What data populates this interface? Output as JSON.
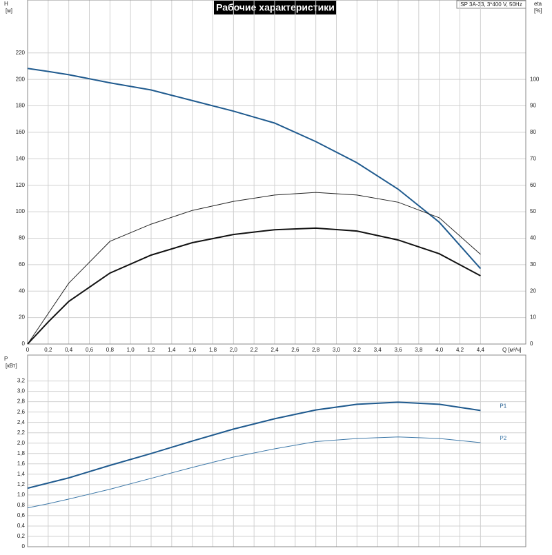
{
  "chart_data": [
    {
      "type": "line",
      "title": "Рабочие характеристики",
      "subtitle": "SP 3A-33, 3*400 V, 50Hz",
      "x_label": "Q [м³/ч]",
      "y_label": [
        "H",
        "[м]"
      ],
      "y2_label": [
        "eta",
        "[%]"
      ],
      "x": [
        0,
        0.2,
        0.4,
        0.8,
        1.2,
        1.6,
        2.0,
        2.4,
        2.8,
        3.2,
        3.6,
        4.0,
        4.4
      ],
      "xlim": [
        0,
        4.84
      ],
      "xticks": [
        0,
        {
          "value": 0.2,
          "label": "0,2"
        },
        {
          "value": 0.4,
          "label": "0,4"
        },
        {
          "value": 0.6,
          "label": "0,6"
        },
        {
          "value": 0.8,
          "label": "0,8"
        },
        {
          "value": 1.0,
          "label": "1,0"
        },
        {
          "value": 1.2,
          "label": "1,2"
        },
        {
          "value": 1.4,
          "label": "1,4"
        },
        {
          "value": 1.6,
          "label": "1,6"
        },
        {
          "value": 1.8,
          "label": "1,8"
        },
        {
          "value": 2.0,
          "label": "2,0"
        },
        {
          "value": 2.2,
          "label": "2,2"
        },
        {
          "value": 2.4,
          "label": "2,4"
        },
        {
          "value": 2.6,
          "label": "2,6"
        },
        {
          "value": 2.8,
          "label": "2,8"
        },
        {
          "value": 3.0,
          "label": "3,0"
        },
        {
          "value": 3.2,
          "label": "3,2"
        },
        {
          "value": 3.4,
          "label": "3,4"
        },
        {
          "value": 3.6,
          "label": "3,6"
        },
        {
          "value": 3.8,
          "label": "3,8"
        },
        {
          "value": 4.0,
          "label": "4,0"
        },
        {
          "value": 4.2,
          "label": "4,2"
        },
        {
          "value": 4.4,
          "label": "4,4"
        }
      ],
      "ylim": [
        0,
        260
      ],
      "yticks": [
        0,
        20,
        40,
        60,
        80,
        100,
        120,
        140,
        160,
        180,
        200,
        220
      ],
      "y2lim": [
        0,
        130
      ],
      "y2ticks": [
        0,
        10,
        20,
        30,
        40,
        50,
        60,
        70,
        80,
        90,
        100
      ],
      "grid": true,
      "series": [
        {
          "color": "#1f5a8e",
          "width": 2,
          "values": [
            208.3,
            206,
            203.5,
            197.4,
            192,
            184,
            176,
            167,
            153,
            137,
            117,
            92,
            57
          ]
        },
        {
          "color": "#222222",
          "width": 1,
          "axis": "y2",
          "values": [
            0,
            11.5,
            23,
            38.8,
            45.3,
            50.5,
            53.9,
            56.3,
            57.3,
            56.3,
            53.6,
            47.7,
            33.9
          ]
        },
        {
          "color": "#111111",
          "width": 2,
          "axis": "y2",
          "values": [
            0,
            8.3,
            16.1,
            26.8,
            33.6,
            38.3,
            41.4,
            43.2,
            43.8,
            42.7,
            39.3,
            34.1,
            25.8
          ]
        }
      ]
    },
    {
      "type": "line",
      "y_label": [
        "P",
        "[кВт]"
      ],
      "x": [
        0,
        0.2,
        0.4,
        0.8,
        1.2,
        1.6,
        2.0,
        2.4,
        2.8,
        3.2,
        3.6,
        4.0,
        4.4
      ],
      "xlim": [
        0,
        4.84
      ],
      "ylim": [
        0,
        3.7
      ],
      "yticks": [
        0,
        {
          "value": 0.2,
          "label": "0,2"
        },
        {
          "value": 0.4,
          "label": "0,4"
        },
        {
          "value": 0.6,
          "label": "0,6"
        },
        {
          "value": 0.8,
          "label": "0,8"
        },
        {
          "value": 1.0,
          "label": "1,0"
        },
        {
          "value": 1.2,
          "label": "1,2"
        },
        {
          "value": 1.4,
          "label": "1,4"
        },
        {
          "value": 1.6,
          "label": "1,6"
        },
        {
          "value": 1.8,
          "label": "1,8"
        },
        {
          "value": 2.0,
          "label": "2,0"
        },
        {
          "value": 2.2,
          "label": "2,2"
        },
        {
          "value": 2.4,
          "label": "2,4"
        },
        {
          "value": 2.6,
          "label": "2,6"
        },
        {
          "value": 2.8,
          "label": "2,8"
        },
        {
          "value": 3.0,
          "label": "3,0"
        },
        {
          "value": 3.2,
          "label": "3,2"
        }
      ],
      "grid": true,
      "series": [
        {
          "name": "P1",
          "color": "#1f5a8e",
          "width": 2,
          "values": [
            1.13,
            1.23,
            1.33,
            1.57,
            1.8,
            2.04,
            2.27,
            2.47,
            2.64,
            2.75,
            2.79,
            2.75,
            2.63
          ]
        },
        {
          "name": "P2",
          "color": "#3d78a8",
          "width": 1,
          "values": [
            0.75,
            0.83,
            0.92,
            1.11,
            1.32,
            1.53,
            1.73,
            1.89,
            2.03,
            2.09,
            2.12,
            2.09,
            2.01
          ]
        }
      ]
    }
  ]
}
